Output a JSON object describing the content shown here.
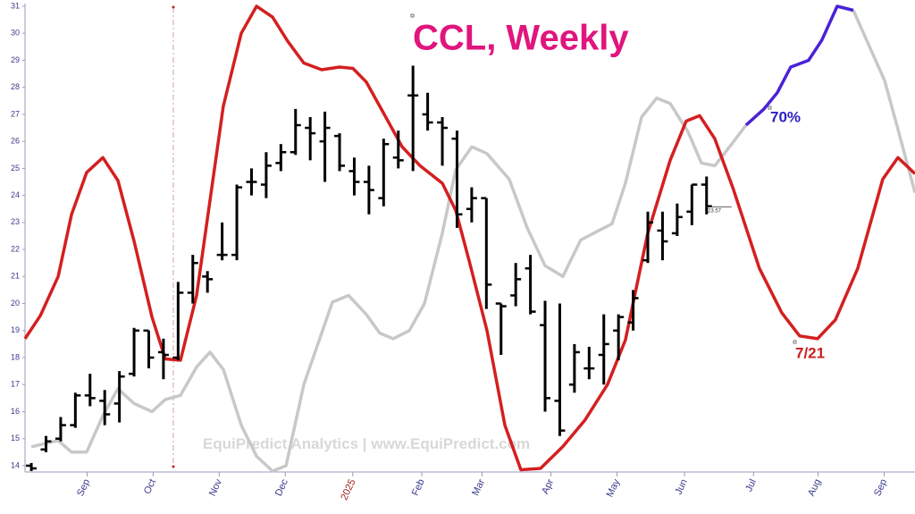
{
  "chart_data": {
    "type": "ohlc",
    "title": "CCL, Weekly",
    "watermark": "EquiPredict Analytics | www.EquiPredict.com",
    "last_price": 23.57,
    "annotations": [
      "70%",
      "7/21"
    ],
    "ylim": [
      13.8,
      31.0
    ],
    "yticks": [
      14,
      15,
      16,
      17,
      18,
      19,
      20,
      21,
      22,
      23,
      24,
      25,
      26,
      27,
      28,
      29,
      30,
      31
    ],
    "xlim": [
      -0.43,
      60.2
    ],
    "xticks": [
      {
        "value": 3.8,
        "label": "Sep",
        "color": "#3a3a8c"
      },
      {
        "value": 8.3,
        "label": "Oct",
        "color": "#3a3a8c"
      },
      {
        "value": 12.8,
        "label": "Nov",
        "color": "#3a3a8c"
      },
      {
        "value": 17.3,
        "label": "Dec",
        "color": "#3a3a8c"
      },
      {
        "value": 21.9,
        "label": "2025",
        "color": "#9b1c1c"
      },
      {
        "value": 26.6,
        "label": "Feb",
        "color": "#3a3a8c"
      },
      {
        "value": 30.7,
        "label": "Mar",
        "color": "#3a3a8c"
      },
      {
        "value": 35.4,
        "label": "Apr",
        "color": "#3a3a8c"
      },
      {
        "value": 39.9,
        "label": "May",
        "color": "#3a3a8c"
      },
      {
        "value": 44.5,
        "label": "Jun",
        "color": "#3a3a8c"
      },
      {
        "value": 49.2,
        "label": "Jul",
        "color": "#3a3a8c"
      },
      {
        "value": 53.6,
        "label": "Aug",
        "color": "#3a3a8c"
      },
      {
        "value": 58.1,
        "label": "Sep",
        "color": "#3a3a8c"
      }
    ],
    "bars": {
      "color": "#000000",
      "x": [
        0,
        1,
        2,
        3,
        4,
        5,
        6,
        7,
        8,
        9,
        10,
        11,
        12,
        13,
        14,
        15,
        16,
        17,
        18,
        19,
        20,
        21,
        22,
        23,
        24,
        25,
        26,
        27,
        28,
        29,
        30,
        31,
        32,
        33,
        34,
        35,
        36,
        37,
        38,
        39,
        40,
        41,
        42,
        43,
        44,
        45,
        46
      ],
      "open": [
        14.0,
        14.6,
        15.0,
        15.5,
        16.6,
        16.4,
        16.3,
        17.4,
        19.0,
        18.2,
        18.0,
        20.4,
        21.0,
        21.8,
        21.8,
        24.5,
        24.4,
        25.2,
        25.6,
        26.5,
        26.0,
        26.2,
        24.9,
        24.5,
        23.9,
        25.4,
        27.7,
        27.0,
        26.7,
        26.1,
        23.5,
        23.9,
        20.0,
        20.3,
        21.3,
        19.2,
        16.4,
        17.0,
        17.6,
        18.1,
        19.0,
        19.3,
        21.6,
        22.7,
        22.6,
        23.4,
        24.4
      ],
      "high": [
        14.1,
        15.1,
        15.8,
        16.7,
        17.4,
        16.8,
        17.5,
        19.1,
        19.0,
        18.7,
        20.8,
        21.8,
        21.2,
        23.0,
        24.4,
        25.0,
        25.6,
        25.9,
        27.2,
        26.9,
        27.1,
        26.3,
        25.4,
        25.1,
        26.1,
        26.4,
        28.8,
        27.8,
        26.9,
        26.4,
        24.3,
        23.9,
        20.0,
        21.5,
        21.8,
        20.1,
        20.0,
        18.5,
        18.4,
        19.6,
        19.6,
        20.5,
        23.4,
        23.4,
        23.7,
        24.4,
        24.7
      ],
      "low": [
        13.8,
        14.5,
        14.9,
        15.4,
        16.2,
        15.5,
        15.6,
        17.3,
        17.6,
        17.2,
        17.9,
        20.0,
        20.4,
        21.6,
        21.6,
        24.0,
        23.9,
        24.9,
        25.5,
        25.3,
        24.5,
        24.9,
        24.0,
        23.3,
        23.6,
        25.0,
        24.9,
        26.4,
        25.1,
        22.8,
        23.0,
        19.8,
        18.1,
        19.9,
        19.6,
        16.0,
        15.1,
        16.7,
        17.2,
        17.0,
        17.9,
        19.0,
        21.5,
        21.6,
        22.5,
        22.9,
        23.3
      ],
      "close": [
        13.9,
        14.9,
        15.5,
        16.6,
        16.5,
        15.9,
        17.3,
        19.0,
        18.0,
        18.1,
        20.4,
        21.5,
        20.9,
        21.8,
        24.3,
        24.5,
        25.1,
        25.6,
        26.6,
        26.3,
        26.5,
        25.1,
        24.5,
        24.2,
        25.9,
        25.3,
        27.7,
        26.7,
        26.5,
        23.3,
        23.9,
        20.7,
        19.9,
        20.9,
        19.7,
        16.5,
        15.3,
        18.2,
        17.6,
        18.5,
        19.5,
        20.2,
        23.0,
        22.3,
        23.2,
        24.4,
        23.6
      ]
    },
    "lines": [
      {
        "color": "#c8c8c8",
        "x": [
          0,
          1.83,
          2.74,
          3.77,
          4.87,
          5.9,
          7.0,
          8.22,
          9.13,
          10.16,
          11.26,
          12.17,
          13.09,
          14.3,
          15.34,
          16.43,
          17.35,
          18.56,
          20.51,
          21.61,
          22.82,
          23.74,
          24.65,
          25.75,
          26.78,
          28.0,
          28.91,
          30.01,
          31.04,
          32.56,
          33.78,
          35.0,
          36.21,
          37.43,
          38.65,
          39.56,
          40.47,
          41.57,
          42.6,
          43.52,
          44.74,
          45.65,
          46.56,
          47.78,
          48.69,
          52.0,
          56.0,
          56.78,
          58.13,
          59.04,
          60.2
        ],
        "values": [
          14.7,
          14.93,
          14.5,
          14.5,
          15.85,
          16.85,
          16.3,
          16.0,
          16.45,
          16.6,
          17.65,
          18.2,
          17.55,
          15.5,
          14.35,
          13.8,
          14.0,
          17.0,
          20.05,
          20.3,
          19.6,
          18.9,
          18.7,
          19.0,
          20.0,
          22.6,
          24.95,
          25.8,
          25.55,
          24.6,
          22.8,
          21.4,
          21.0,
          22.35,
          22.7,
          22.95,
          24.45,
          26.9,
          27.6,
          27.4,
          26.35,
          25.2,
          25.1,
          25.95,
          26.6,
          null,
          30.85,
          29.9,
          28.25,
          26.45,
          24.1
        ]
      },
      {
        "color": "#d41f1f",
        "x": [
          -0.43,
          0.61,
          1.83,
          2.74,
          3.77,
          4.87,
          5.9,
          7.0,
          8.22,
          9.13,
          10.16,
          11.26,
          13.08,
          14.3,
          15.34,
          16.43,
          17.47,
          18.56,
          19.78,
          21.0,
          21.91,
          22.82,
          24.04,
          25.26,
          26.48,
          28.0,
          28.91,
          29.82,
          31.04,
          32.26,
          33.35,
          34.69,
          36.2,
          37.73,
          39.25,
          40.47,
          41.99,
          43.52,
          44.61,
          45.53,
          46.56,
          47.78,
          49.6,
          51.13,
          52.34,
          53.56,
          54.78,
          56.3,
          58.0,
          59.04,
          60.2
        ],
        "values": [
          18.7,
          19.55,
          21.0,
          23.3,
          24.85,
          25.4,
          24.55,
          22.3,
          19.5,
          17.95,
          17.9,
          20.3,
          27.3,
          30.0,
          31.0,
          30.6,
          29.7,
          28.9,
          28.65,
          28.75,
          28.7,
          28.2,
          27.0,
          25.8,
          25.1,
          24.45,
          23.45,
          21.6,
          19.0,
          15.5,
          13.85,
          13.9,
          14.7,
          15.7,
          17.0,
          18.65,
          22.6,
          25.3,
          26.75,
          26.95,
          26.1,
          24.3,
          21.3,
          19.65,
          18.8,
          18.7,
          19.4,
          21.3,
          24.6,
          25.4,
          24.8
        ]
      },
      {
        "color": "#4a22d6",
        "x": [
          48.69,
          49.91,
          50.82,
          51.73,
          52.95,
          53.86,
          54.9,
          56.0
        ],
        "values": [
          26.6,
          27.2,
          27.8,
          28.75,
          29.0,
          29.75,
          31.0,
          30.85
        ]
      }
    ]
  }
}
